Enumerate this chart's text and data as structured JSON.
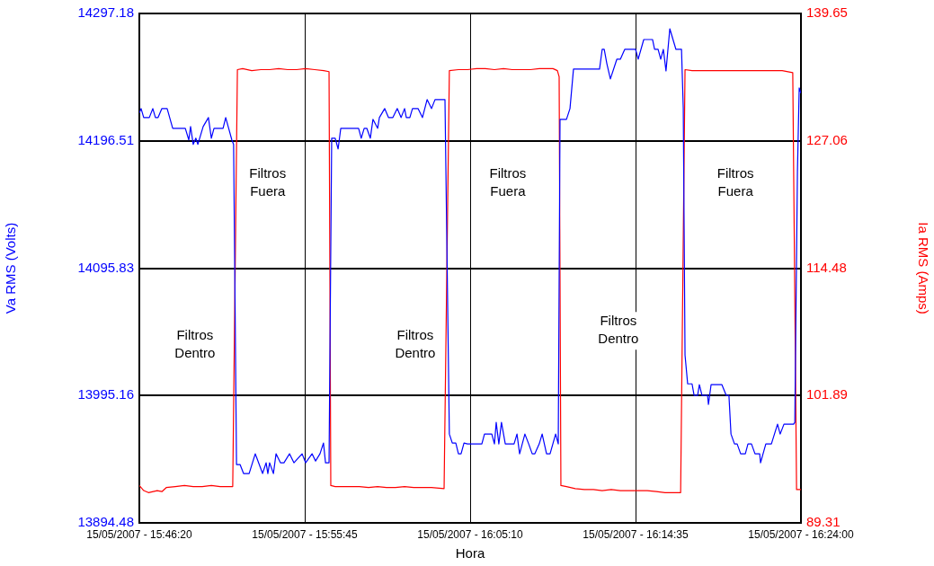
{
  "chart_data": {
    "type": "line",
    "xlabel": "Hora",
    "ylabel": "Va RMS (Volts)",
    "y2label": "Ia RMS (Amps)",
    "xlim": [
      "2007-05-15T15:46:20",
      "2007-05-15T16:24:00"
    ],
    "xticks": [
      {
        "value": "2007-05-15T15:46:20",
        "label": "15/05/2007 - 15:46:20"
      },
      {
        "value": "2007-05-15T15:55:45",
        "label": "15/05/2007 - 15:55:45"
      },
      {
        "value": "2007-05-15T16:05:10",
        "label": "15/05/2007 - 16:05:10"
      },
      {
        "value": "2007-05-15T16:14:35",
        "label": "15/05/2007 - 16:14:35"
      },
      {
        "value": "2007-05-15T16:24:00",
        "label": "15/05/2007 - 16:24:00"
      }
    ],
    "ylim": [
      13894.48,
      14297.18
    ],
    "yticks": [
      13894.48,
      13995.16,
      14095.83,
      14196.51,
      14297.18
    ],
    "y2lim": [
      89.31,
      139.65
    ],
    "y2ticks": [
      89.31,
      101.89,
      114.48,
      127.06,
      139.65
    ],
    "grid": true,
    "legend": false,
    "marker": "none",
    "line_style": "solid",
    "series": [
      {
        "color": "#0000ff",
        "x": [
          "2007-05-15T15:46:20",
          "2007-05-15T15:46:26",
          "2007-05-15T15:46:35",
          "2007-05-15T15:46:54",
          "2007-05-15T15:47:06",
          "2007-05-15T15:47:15",
          "2007-05-15T15:47:24",
          "2007-05-15T15:47:37",
          "2007-05-15T15:47:55",
          "2007-05-15T15:48:14",
          "2007-05-15T15:48:57",
          "2007-05-15T15:49:09",
          "2007-05-15T15:49:15",
          "2007-05-15T15:49:24",
          "2007-05-15T15:49:33",
          "2007-05-15T15:49:40",
          "2007-05-15T15:49:58",
          "2007-05-15T15:50:16",
          "2007-05-15T15:50:26",
          "2007-05-15T15:50:35",
          "2007-05-15T15:51:06",
          "2007-05-15T15:51:15",
          "2007-05-15T15:51:36",
          "2007-05-15T15:51:42",
          "2007-05-15T15:51:52",
          "2007-05-15T15:52:04",
          "2007-05-15T15:52:16",
          "2007-05-15T15:52:35",
          "2007-05-15T15:52:56",
          "2007-05-15T15:53:21",
          "2007-05-15T15:53:33",
          "2007-05-15T15:53:39",
          "2007-05-15T15:53:45",
          "2007-05-15T15:53:58",
          "2007-05-15T15:54:07",
          "2007-05-15T15:54:22",
          "2007-05-15T15:54:34",
          "2007-05-15T15:54:53",
          "2007-05-15T15:55:08",
          "2007-05-15T15:55:36",
          "2007-05-15T15:55:48",
          "2007-05-15T15:56:10",
          "2007-05-15T15:56:22",
          "2007-05-15T15:56:37",
          "2007-05-15T15:56:49",
          "2007-05-15T15:56:56",
          "2007-05-15T15:57:08",
          "2007-05-15T15:57:17",
          "2007-05-15T15:57:29",
          "2007-05-15T15:57:39",
          "2007-05-15T15:57:48",
          "2007-05-15T15:58:49",
          "2007-05-15T15:58:58",
          "2007-05-15T15:59:08",
          "2007-05-15T15:59:17",
          "2007-05-15T15:59:29",
          "2007-05-15T15:59:38",
          "2007-05-15T15:59:54",
          "2007-05-15T16:00:00",
          "2007-05-15T16:00:18",
          "2007-05-15T16:00:31",
          "2007-05-15T16:00:46",
          "2007-05-15T16:01:01",
          "2007-05-15T16:01:14",
          "2007-05-15T16:01:26",
          "2007-05-15T16:01:32",
          "2007-05-15T16:01:44",
          "2007-05-15T16:01:53",
          "2007-05-15T16:02:12",
          "2007-05-15T16:02:27",
          "2007-05-15T16:02:43",
          "2007-05-15T16:02:58",
          "2007-05-15T16:03:10",
          "2007-05-15T16:03:35",
          "2007-05-15T16:03:44",
          "2007-05-15T16:03:59",
          "2007-05-15T16:04:09",
          "2007-05-15T16:04:21",
          "2007-05-15T16:04:30",
          "2007-05-15T16:04:39",
          "2007-05-15T16:04:49",
          "2007-05-15T16:05:01",
          "2007-05-15T16:05:50",
          "2007-05-15T16:05:59",
          "2007-05-15T16:06:24",
          "2007-05-15T16:06:33",
          "2007-05-15T16:06:39",
          "2007-05-15T16:06:48",
          "2007-05-15T16:06:57",
          "2007-05-15T16:07:10",
          "2007-05-15T16:07:40",
          "2007-05-15T16:07:50",
          "2007-05-15T16:07:59",
          "2007-05-15T16:08:17",
          "2007-05-15T16:08:30",
          "2007-05-15T16:08:42",
          "2007-05-15T16:08:51",
          "2007-05-15T16:09:06",
          "2007-05-15T16:09:16",
          "2007-05-15T16:09:31",
          "2007-05-15T16:09:43",
          "2007-05-15T16:10:02",
          "2007-05-15T16:10:11",
          "2007-05-15T16:10:17",
          "2007-05-15T16:10:39",
          "2007-05-15T16:10:51",
          "2007-05-15T16:11:03",
          "2007-05-15T16:12:32",
          "2007-05-15T16:12:41",
          "2007-05-15T16:12:48",
          "2007-05-15T16:12:57",
          "2007-05-15T16:13:09",
          "2007-05-15T16:13:31",
          "2007-05-15T16:13:43",
          "2007-05-15T16:13:58",
          "2007-05-15T16:14:35",
          "2007-05-15T16:14:44",
          "2007-05-15T16:15:03",
          "2007-05-15T16:15:33",
          "2007-05-15T16:15:40",
          "2007-05-15T16:15:52",
          "2007-05-15T16:16:01",
          "2007-05-15T16:16:10",
          "2007-05-15T16:16:19",
          "2007-05-15T16:16:32",
          "2007-05-15T16:16:53",
          "2007-05-15T16:17:12",
          "2007-05-15T16:17:18",
          "2007-05-15T16:17:24",
          "2007-05-15T16:17:33",
          "2007-05-15T16:17:48",
          "2007-05-15T16:17:55",
          "2007-05-15T16:18:07",
          "2007-05-15T16:18:13",
          "2007-05-15T16:18:22",
          "2007-05-15T16:18:41",
          "2007-05-15T16:18:44",
          "2007-05-15T16:18:53",
          "2007-05-15T16:19:30",
          "2007-05-15T16:19:45",
          "2007-05-15T16:19:54",
          "2007-05-15T16:20:01",
          "2007-05-15T16:20:13",
          "2007-05-15T16:20:22",
          "2007-05-15T16:20:34",
          "2007-05-15T16:20:50",
          "2007-05-15T16:20:59",
          "2007-05-15T16:21:11",
          "2007-05-15T16:21:23",
          "2007-05-15T16:21:39",
          "2007-05-15T16:21:42",
          "2007-05-15T16:22:00",
          "2007-05-15T16:22:19",
          "2007-05-15T16:22:40",
          "2007-05-15T16:22:49",
          "2007-05-15T16:23:02",
          "2007-05-15T16:23:35",
          "2007-05-15T16:23:39",
          "2007-05-15T16:23:48",
          "2007-05-15T16:23:54",
          "2007-05-15T16:24:00"
        ],
        "values": [
          14218.5,
          14222.0,
          14214.9,
          14214.9,
          14222.0,
          14214.9,
          14214.9,
          14222.0,
          14222.0,
          14206.4,
          14206.4,
          14197.2,
          14207.8,
          14193.7,
          14198.6,
          14193.7,
          14207.8,
          14214.9,
          14198.6,
          14206.4,
          14206.4,
          14214.9,
          14197.2,
          14193.7,
          13940.6,
          13940.6,
          13933.5,
          13933.5,
          13949.1,
          13933.5,
          13942.0,
          13933.5,
          13942.0,
          13933.5,
          13949.1,
          13942.0,
          13942.0,
          13949.1,
          13942.0,
          13949.1,
          13942.0,
          13949.1,
          13943.4,
          13949.1,
          13957.6,
          13942.0,
          13942.0,
          14198.6,
          14198.6,
          14190.1,
          14206.4,
          14206.4,
          14198.6,
          14206.4,
          14206.4,
          14198.6,
          14213.5,
          14206.4,
          14214.9,
          14222.0,
          14214.9,
          14214.9,
          14222.0,
          14214.9,
          14222.0,
          14214.9,
          14214.9,
          14222.0,
          14222.0,
          14214.9,
          14229.1,
          14222.0,
          14229.1,
          14229.1,
          14229.1,
          13964.7,
          13957.6,
          13957.6,
          13949.1,
          13949.1,
          13957.6,
          13956.9,
          13956.9,
          13964.7,
          13964.7,
          13956.9,
          13973.9,
          13956.9,
          13973.9,
          13956.9,
          13956.9,
          13964.7,
          13949.1,
          13964.7,
          13956.9,
          13949.1,
          13949.1,
          13956.9,
          13964.7,
          13949.1,
          13949.1,
          13964.7,
          13956.9,
          14213.5,
          14213.5,
          14222.0,
          14253.2,
          14253.2,
          14268.8,
          14268.8,
          14257.5,
          14245.4,
          14261.0,
          14261.0,
          14268.8,
          14268.8,
          14261.0,
          14276.6,
          14276.6,
          14268.8,
          14268.8,
          14261.0,
          14268.8,
          14251.8,
          14285.1,
          14268.8,
          14268.8,
          14222.0,
          14027.1,
          14004.4,
          14004.4,
          13995.2,
          13995.2,
          14003.7,
          13995.2,
          13995.2,
          13988.1,
          14003.7,
          14003.7,
          13995.2,
          13995.2,
          13964.7,
          13956.9,
          13956.9,
          13949.1,
          13949.1,
          13956.9,
          13956.9,
          13949.1,
          13949.1,
          13942.0,
          13956.9,
          13956.9,
          13972.5,
          13964.7,
          13972.5,
          13972.5,
          13973.9,
          14172.4,
          14238.3,
          14234.1
        ]
      },
      {
        "color": "#ff0000",
        "axis": "y2",
        "x": [
          "2007-05-15T15:46:20",
          "2007-05-15T15:46:35",
          "2007-05-15T15:46:51",
          "2007-05-15T15:47:21",
          "2007-05-15T15:47:37",
          "2007-05-15T15:47:52",
          "2007-05-15T15:48:23",
          "2007-05-15T15:48:54",
          "2007-05-15T15:49:24",
          "2007-05-15T15:49:55",
          "2007-05-15T15:50:26",
          "2007-05-15T15:50:56",
          "2007-05-15T15:51:39",
          "2007-05-15T15:51:55",
          "2007-05-15T15:52:13",
          "2007-05-15T15:52:44",
          "2007-05-15T15:53:15",
          "2007-05-15T15:53:45",
          "2007-05-15T15:54:16",
          "2007-05-15T15:54:47",
          "2007-05-15T15:55:17",
          "2007-05-15T15:55:48",
          "2007-05-15T15:56:19",
          "2007-05-15T15:56:50",
          "2007-05-15T15:57:08",
          "2007-05-15T15:57:14",
          "2007-05-15T15:57:29",
          "2007-05-15T15:57:51",
          "2007-05-15T15:58:22",
          "2007-05-15T15:58:52",
          "2007-05-15T15:59:23",
          "2007-05-15T15:59:54",
          "2007-05-15T16:00:24",
          "2007-05-15T16:00:55",
          "2007-05-15T16:01:26",
          "2007-05-15T16:01:57",
          "2007-05-15T16:02:27",
          "2007-05-15T16:02:58",
          "2007-05-15T16:03:41",
          "2007-05-15T16:03:59",
          "2007-05-15T16:04:30",
          "2007-05-15T16:05:01",
          "2007-05-15T16:05:32",
          "2007-05-15T16:06:02",
          "2007-05-15T16:06:33",
          "2007-05-15T16:07:04",
          "2007-05-15T16:07:34",
          "2007-05-15T16:08:05",
          "2007-05-15T16:08:36",
          "2007-05-15T16:09:06",
          "2007-05-15T16:09:53",
          "2007-05-15T16:10:08",
          "2007-05-15T16:10:14",
          "2007-05-15T16:10:20",
          "2007-05-15T16:10:39",
          "2007-05-15T16:11:09",
          "2007-05-15T16:11:40",
          "2007-05-15T16:12:11",
          "2007-05-15T16:12:41",
          "2007-05-15T16:13:12",
          "2007-05-15T16:13:43",
          "2007-05-15T16:14:14",
          "2007-05-15T16:14:44",
          "2007-05-15T16:15:15",
          "2007-05-15T16:15:46",
          "2007-05-15T16:16:16",
          "2007-05-15T16:17:09",
          "2007-05-15T16:17:24",
          "2007-05-15T16:17:48",
          "2007-05-15T16:18:19",
          "2007-05-15T16:18:50",
          "2007-05-15T16:19:21",
          "2007-05-15T16:19:51",
          "2007-05-15T16:20:22",
          "2007-05-15T16:20:53",
          "2007-05-15T16:21:23",
          "2007-05-15T16:21:54",
          "2007-05-15T16:22:25",
          "2007-05-15T16:22:56",
          "2007-05-15T16:23:32",
          "2007-05-15T16:23:45",
          "2007-05-15T16:24:00"
        ],
        "values": [
          93.0,
          92.5,
          92.3,
          92.5,
          92.4,
          92.8,
          92.9,
          93.0,
          92.9,
          92.9,
          93.0,
          92.9,
          92.9,
          134.1,
          134.2,
          134.0,
          134.1,
          134.1,
          134.2,
          134.1,
          134.1,
          134.2,
          134.1,
          134.0,
          133.9,
          93.0,
          92.9,
          92.9,
          92.9,
          92.9,
          92.8,
          92.9,
          92.8,
          92.8,
          92.9,
          92.8,
          92.8,
          92.8,
          92.7,
          134.0,
          134.1,
          134.1,
          134.2,
          134.2,
          134.1,
          134.2,
          134.1,
          134.1,
          134.1,
          134.2,
          134.2,
          134.0,
          133.4,
          93.0,
          92.9,
          92.7,
          92.6,
          92.6,
          92.5,
          92.6,
          92.5,
          92.5,
          92.5,
          92.5,
          92.4,
          92.3,
          92.3,
          134.1,
          134.0,
          134.0,
          134.0,
          134.0,
          134.0,
          134.0,
          134.0,
          134.0,
          134.0,
          134.0,
          134.0,
          133.8,
          92.6,
          92.6
        ]
      }
    ],
    "annotations": [
      "Filtros\nFuera",
      "Filtros\nFuera",
      "Filtros\nFuera",
      "Filtros\nDentro",
      "Filtros\nDentro",
      "Filtros\nDentro"
    ]
  }
}
